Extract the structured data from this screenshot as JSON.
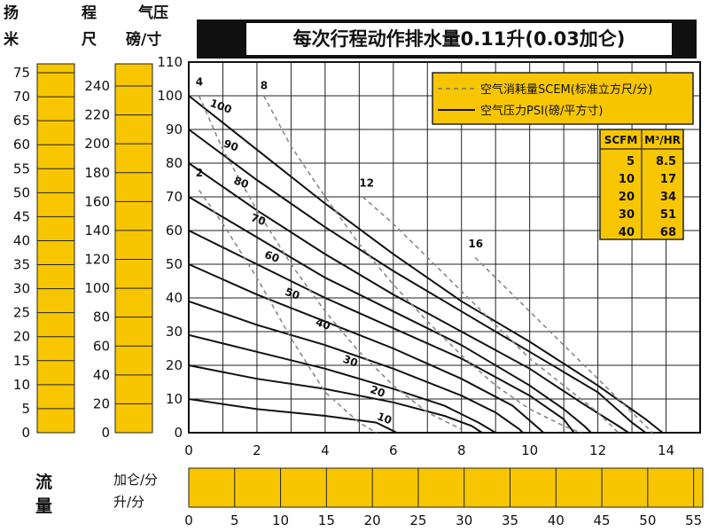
{
  "chart_data": {
    "type": "line",
    "title": "每次行程动作排水量0.11升(0.03加仑)",
    "left_axes": {
      "head_m": {
        "label_top": "扬",
        "label_bottom": "米",
        "ticks": [
          0,
          5,
          10,
          15,
          20,
          25,
          30,
          35,
          40,
          45,
          50,
          55,
          60,
          65,
          70,
          75
        ]
      },
      "head_ft": {
        "label_top": "程",
        "label_bottom": "尺",
        "ticks": [
          0,
          20,
          40,
          60,
          80,
          100,
          120,
          140,
          160,
          180,
          200,
          220,
          240
        ]
      },
      "pressure_psi": {
        "label_top": "气压",
        "label_bottom": "磅/寸",
        "ticks": [
          0,
          10,
          20,
          30,
          40,
          50,
          60,
          70,
          80,
          90,
          100,
          110
        ]
      }
    },
    "x_axis_top": {
      "ticks": [
        0,
        2,
        4,
        6,
        8,
        10,
        12,
        14
      ]
    },
    "flow_axis": {
      "label": "流量",
      "unit_top": "加仑/分",
      "unit_bottom": "升/分",
      "ticks": [
        0,
        5,
        10,
        15,
        20,
        25,
        30,
        35,
        40,
        45,
        50,
        55
      ]
    },
    "xlim": [
      0,
      15
    ],
    "ylim": [
      0,
      110
    ],
    "legend": {
      "dashed": "空气消耗量SCEM(标准立方尺/分)",
      "solid": "空气压力PSI(磅/平方寸)"
    },
    "conversion_table": {
      "headers": [
        "SCFM",
        "M³/HR"
      ],
      "rows": [
        [
          "5",
          "8.5"
        ],
        [
          "10",
          "17"
        ],
        [
          "20",
          "34"
        ],
        [
          "30",
          "51"
        ],
        [
          "40",
          "68"
        ]
      ]
    },
    "pressure_series": [
      {
        "name": "100",
        "points": [
          [
            0,
            100
          ],
          [
            2,
            84
          ],
          [
            4,
            68
          ],
          [
            6,
            53
          ],
          [
            8,
            39
          ],
          [
            10,
            27
          ],
          [
            12,
            14
          ],
          [
            13.4,
            4
          ],
          [
            13.9,
            0
          ]
        ]
      },
      {
        "name": "90",
        "points": [
          [
            0,
            90
          ],
          [
            2,
            75
          ],
          [
            4,
            61
          ],
          [
            6,
            48
          ],
          [
            8,
            36
          ],
          [
            10,
            24
          ],
          [
            12,
            12
          ],
          [
            13,
            3
          ],
          [
            13.4,
            0
          ]
        ]
      },
      {
        "name": "80",
        "points": [
          [
            0,
            80
          ],
          [
            2,
            66
          ],
          [
            4,
            53
          ],
          [
            6,
            41
          ],
          [
            8,
            30
          ],
          [
            10,
            19
          ],
          [
            11.5,
            9
          ],
          [
            12.6,
            2
          ],
          [
            12.9,
            0
          ]
        ]
      },
      {
        "name": "70",
        "points": [
          [
            0,
            70
          ],
          [
            2,
            58
          ],
          [
            4,
            46
          ],
          [
            6,
            36
          ],
          [
            8,
            26
          ],
          [
            10,
            14
          ],
          [
            11,
            7
          ],
          [
            11.6,
            2
          ],
          [
            11.8,
            0
          ]
        ]
      },
      {
        "name": "60",
        "points": [
          [
            0,
            60
          ],
          [
            2,
            50
          ],
          [
            4,
            40
          ],
          [
            6,
            31
          ],
          [
            8,
            22
          ],
          [
            10,
            11
          ],
          [
            11,
            4
          ],
          [
            11.3,
            0
          ]
        ]
      },
      {
        "name": "50",
        "points": [
          [
            0,
            50
          ],
          [
            2,
            41
          ],
          [
            4,
            33
          ],
          [
            6,
            25
          ],
          [
            8,
            16
          ],
          [
            9.5,
            8
          ],
          [
            10.3,
            1
          ],
          [
            10.4,
            0
          ]
        ]
      },
      {
        "name": "40",
        "points": [
          [
            0,
            39
          ],
          [
            2,
            32
          ],
          [
            4,
            26
          ],
          [
            6,
            19
          ],
          [
            8,
            11
          ],
          [
            9,
            6
          ],
          [
            9.7,
            1
          ],
          [
            9.8,
            0
          ]
        ]
      },
      {
        "name": "30",
        "points": [
          [
            0,
            29
          ],
          [
            2,
            24
          ],
          [
            4,
            19
          ],
          [
            6,
            13
          ],
          [
            7.5,
            8
          ],
          [
            8.5,
            3
          ],
          [
            9,
            0
          ]
        ]
      },
      {
        "name": "20",
        "points": [
          [
            0,
            20
          ],
          [
            2,
            16
          ],
          [
            4,
            13
          ],
          [
            6,
            9
          ],
          [
            7.5,
            5
          ],
          [
            8.3,
            2
          ],
          [
            8.6,
            0
          ]
        ]
      },
      {
        "name": "10",
        "points": [
          [
            0,
            10
          ],
          [
            2,
            7
          ],
          [
            4,
            5
          ],
          [
            5.5,
            3
          ],
          [
            5.9,
            1
          ],
          [
            6.1,
            0
          ]
        ]
      }
    ],
    "air_series": [
      {
        "name": "2",
        "points": [
          [
            0.3,
            72
          ],
          [
            1,
            62
          ],
          [
            2,
            46
          ],
          [
            3,
            28
          ],
          [
            4,
            12
          ],
          [
            5,
            3
          ],
          [
            5.5,
            0
          ]
        ]
      },
      {
        "name": "4",
        "points": [
          [
            0.3,
            100
          ],
          [
            1,
            84
          ],
          [
            2,
            66
          ],
          [
            3,
            50
          ],
          [
            4,
            36
          ],
          [
            5,
            24
          ],
          [
            6,
            14
          ],
          [
            7,
            6
          ],
          [
            8,
            1
          ]
        ]
      },
      {
        "name": "8",
        "points": [
          [
            2.2,
            100
          ],
          [
            3,
            85
          ],
          [
            4,
            70
          ],
          [
            5,
            56
          ],
          [
            6,
            44
          ],
          [
            7,
            33
          ],
          [
            8,
            23
          ],
          [
            9,
            14
          ],
          [
            10,
            7
          ],
          [
            11,
            2
          ],
          [
            11.5,
            0
          ]
        ]
      },
      {
        "name": "12",
        "points": [
          [
            5.1,
            70
          ],
          [
            6,
            62
          ],
          [
            7,
            52
          ],
          [
            8,
            42
          ],
          [
            9,
            32
          ],
          [
            10,
            22
          ],
          [
            11,
            14
          ],
          [
            12,
            6
          ],
          [
            12.6,
            0
          ]
        ]
      },
      {
        "name": "16",
        "points": [
          [
            8.4,
            52
          ],
          [
            9,
            46
          ],
          [
            10,
            36
          ],
          [
            11,
            26
          ],
          [
            12,
            16
          ],
          [
            13,
            6
          ],
          [
            13.6,
            0
          ]
        ]
      }
    ],
    "pressure_label_positions": [
      {
        "name": "100",
        "x": 0.6,
        "y": 97
      },
      {
        "name": "90",
        "x": 1.0,
        "y": 85
      },
      {
        "name": "80",
        "x": 1.3,
        "y": 74
      },
      {
        "name": "70",
        "x": 1.8,
        "y": 63
      },
      {
        "name": "60",
        "x": 2.2,
        "y": 52
      },
      {
        "name": "50",
        "x": 2.8,
        "y": 41
      },
      {
        "name": "40",
        "x": 3.7,
        "y": 32
      },
      {
        "name": "30",
        "x": 4.5,
        "y": 21
      },
      {
        "name": "20",
        "x": 5.3,
        "y": 12
      },
      {
        "name": "10",
        "x": 5.5,
        "y": 4
      }
    ],
    "air_label_positions": [
      {
        "name": "4",
        "x": 0.2,
        "y": 103
      },
      {
        "name": "2",
        "x": 0.2,
        "y": 76
      },
      {
        "name": "8",
        "x": 2.1,
        "y": 102
      },
      {
        "name": "12",
        "x": 5.0,
        "y": 73
      },
      {
        "name": "16",
        "x": 8.2,
        "y": 55
      }
    ]
  }
}
